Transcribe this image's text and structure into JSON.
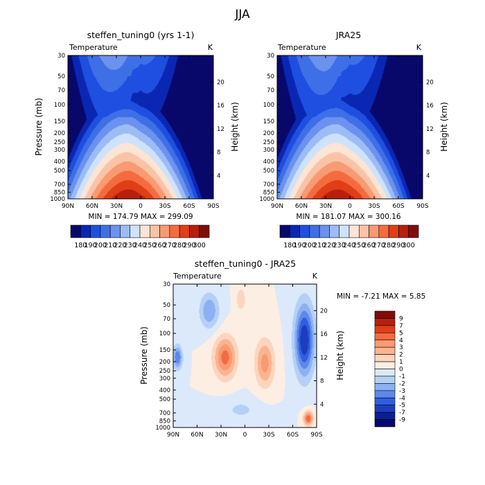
{
  "page_title": "JJA",
  "chart_data": [
    {
      "type": "heatmap",
      "title": "steffen_tuning0 (yrs 1-1)",
      "left_label": "Temperature",
      "right_label": "K",
      "xlabel": "",
      "ylabel": "Pressure (mb)",
      "ylabel_right": "Height (km)",
      "x_ticks": [
        "90N",
        "60N",
        "30N",
        "0",
        "30S",
        "60S",
        "90S"
      ],
      "y_ticks": [
        "30",
        "50",
        "70",
        "100",
        "150",
        "200",
        "250",
        "300",
        "400",
        "500",
        "700",
        "850",
        "1000"
      ],
      "y_right_ticks": [
        "20",
        "16",
        "12",
        "8",
        "4"
      ],
      "stats_text": "MIN = 174.79   MAX = 299.09",
      "min": 174.79,
      "max": 299.09
    },
    {
      "type": "heatmap",
      "title": "JRA25",
      "left_label": "Temperature",
      "right_label": "K",
      "xlabel": "",
      "ylabel": "",
      "ylabel_right": "Height (km)",
      "x_ticks": [
        "90N",
        "60N",
        "30N",
        "0",
        "30S",
        "60S",
        "90S"
      ],
      "y_ticks": [
        "30",
        "50",
        "70",
        "100",
        "150",
        "200",
        "250",
        "300",
        "400",
        "500",
        "700",
        "850",
        "1000"
      ],
      "y_right_ticks": [
        "20",
        "16",
        "12",
        "8",
        "4"
      ],
      "stats_text": "MIN = 181.07   MAX = 300.16",
      "min": 181.07,
      "max": 300.16
    },
    {
      "type": "heatmap",
      "title": "steffen_tuning0 - JRA25",
      "left_label": "Temperature",
      "right_label": "K",
      "xlabel": "",
      "ylabel": "Pressure (mb)",
      "ylabel_right": "Height (km)",
      "x_ticks": [
        "90N",
        "60N",
        "30N",
        "0",
        "30S",
        "60S",
        "90S"
      ],
      "y_ticks": [
        "30",
        "50",
        "70",
        "100",
        "150",
        "200",
        "250",
        "300",
        "400",
        "500",
        "700",
        "850",
        "1000"
      ],
      "y_right_ticks": [
        "20",
        "16",
        "12",
        "8",
        "4"
      ],
      "stats_text": "MIN =  -7.21   MAX =   5.85",
      "min": -7.21,
      "max": 5.85
    }
  ],
  "colorbar_top": {
    "labels": [
      "180",
      "190",
      "200",
      "210",
      "220",
      "230",
      "240",
      "250",
      "260",
      "270",
      "280",
      "290",
      "300"
    ],
    "colors": [
      "#08086b",
      "#0a27b4",
      "#1f4fe0",
      "#3f6fe6",
      "#6a92ee",
      "#9cbcf6",
      "#cfe2fb",
      "#fde4d4",
      "#fbc3a6",
      "#f89a72",
      "#f56b40",
      "#e03e16",
      "#b81f0d",
      "#7f0d0a"
    ]
  },
  "colorbar_diff": {
    "labels": [
      "9",
      "7",
      "5",
      "4",
      "3",
      "2",
      "1",
      "0",
      "-1",
      "-2",
      "-3",
      "-4",
      "-5",
      "-7",
      "-9"
    ],
    "colors": [
      "#7f0d0a",
      "#b81f0d",
      "#e03e16",
      "#f56b40",
      "#f89a72",
      "#fbb48f",
      "#fdd5bf",
      "#fdeee3",
      "#dbe9fb",
      "#b5d0f7",
      "#8cb1f1",
      "#5e88ea",
      "#2f5ee0",
      "#1c3dbf",
      "#0a1f94",
      "#08086b"
    ]
  }
}
